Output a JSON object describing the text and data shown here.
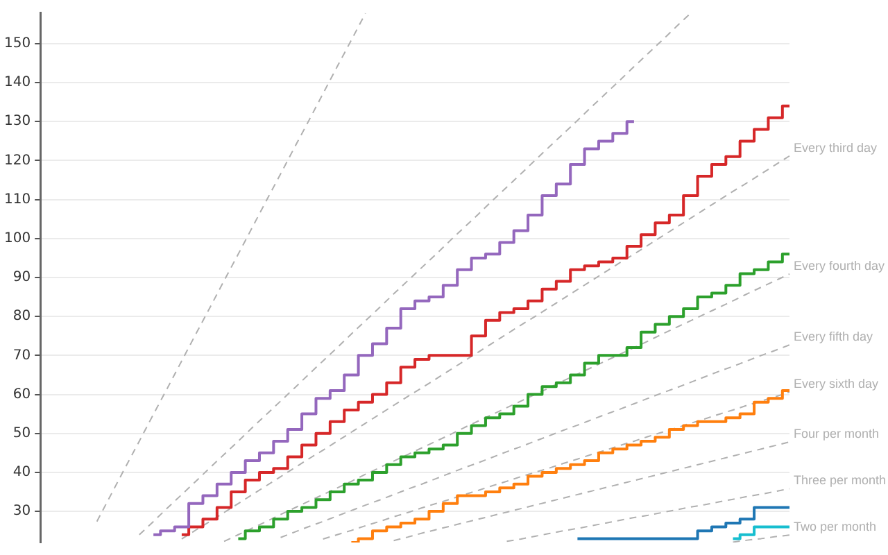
{
  "chart_data": {
    "type": "step",
    "categories": [
      null,
      null,
      null,
      null,
      null,
      null,
      null,
      null,
      null,
      null,
      null,
      null,
      null,
      null,
      null,
      null,
      null,
      null,
      null,
      null,
      null,
      null,
      null,
      null,
      null,
      null,
      null,
      null,
      null,
      null,
      null,
      null,
      null,
      null,
      null,
      null,
      null,
      null,
      null,
      null,
      null,
      null,
      null,
      null,
      null,
      null,
      null,
      null,
      null,
      null,
      null,
      null,
      null,
      null
    ],
    "ylim": [
      22,
      158
    ],
    "yticks": [
      30,
      40,
      50,
      60,
      70,
      80,
      90,
      100,
      110,
      120,
      130,
      140,
      150
    ],
    "grid": "y",
    "tick_labels": "y",
    "marker": "none",
    "series": [
      {
        "color": "#9467bd",
        "values": [
          null,
          null,
          null,
          null,
          null,
          null,
          null,
          null,
          24,
          25,
          26,
          32,
          34,
          37,
          40,
          43,
          45,
          48,
          51,
          55,
          59,
          61,
          65,
          70,
          73,
          77,
          82,
          84,
          85,
          88,
          92,
          95,
          96,
          99,
          102,
          106,
          111,
          114,
          119,
          123,
          125,
          127,
          130,
          null,
          null,
          null,
          null,
          null,
          null,
          null,
          null,
          null,
          null,
          null
        ]
      },
      {
        "color": "#d62728",
        "values": [
          null,
          null,
          null,
          null,
          null,
          null,
          null,
          null,
          null,
          null,
          24,
          26,
          28,
          31,
          35,
          38,
          40,
          41,
          44,
          47,
          50,
          53,
          56,
          58,
          60,
          63,
          67,
          69,
          70,
          70,
          70,
          75,
          79,
          81,
          82,
          84,
          87,
          89,
          92,
          93,
          94,
          95,
          98,
          101,
          104,
          106,
          111,
          116,
          119,
          121,
          125,
          128,
          131,
          134
        ]
      },
      {
        "color": "#2ca02c",
        "values": [
          null,
          null,
          null,
          null,
          null,
          null,
          null,
          null,
          null,
          null,
          null,
          null,
          null,
          null,
          23,
          25,
          26,
          28,
          30,
          31,
          33,
          35,
          37,
          38,
          40,
          42,
          44,
          45,
          46,
          47,
          50,
          52,
          54,
          55,
          57,
          60,
          62,
          63,
          65,
          68,
          70,
          70,
          72,
          76,
          78,
          80,
          82,
          85,
          86,
          88,
          91,
          92,
          94,
          96
        ]
      },
      {
        "color": "#ff7f0e",
        "values": [
          null,
          null,
          null,
          null,
          null,
          null,
          null,
          null,
          null,
          null,
          null,
          null,
          null,
          null,
          null,
          null,
          null,
          null,
          null,
          null,
          null,
          null,
          22,
          23,
          25,
          26,
          27,
          28,
          30,
          32,
          34,
          34,
          35,
          36,
          37,
          39,
          40,
          41,
          42,
          43,
          45,
          46,
          47,
          48,
          49,
          51,
          52,
          53,
          53,
          54,
          55,
          58,
          59,
          61
        ]
      },
      {
        "color": "#1f77b4",
        "values": [
          null,
          null,
          null,
          null,
          null,
          null,
          null,
          null,
          null,
          null,
          null,
          null,
          null,
          null,
          null,
          null,
          null,
          null,
          null,
          null,
          null,
          null,
          null,
          null,
          null,
          null,
          null,
          null,
          null,
          null,
          null,
          null,
          null,
          null,
          null,
          null,
          null,
          null,
          23,
          23,
          23,
          23,
          23,
          23,
          23,
          23,
          23,
          25,
          26,
          27,
          28,
          31,
          31,
          31
        ]
      },
      {
        "color": "#17becf",
        "values": [
          null,
          null,
          null,
          null,
          null,
          null,
          null,
          null,
          null,
          null,
          null,
          null,
          null,
          null,
          null,
          null,
          null,
          null,
          null,
          null,
          null,
          null,
          null,
          null,
          null,
          null,
          null,
          null,
          null,
          null,
          null,
          null,
          null,
          null,
          null,
          null,
          null,
          null,
          null,
          null,
          null,
          null,
          null,
          null,
          null,
          null,
          null,
          null,
          null,
          23,
          24,
          26,
          26,
          26
        ]
      },
      {
        "type": "line",
        "line_style": "dashed",
        "color": "#b0b0b0",
        "values": [
          null,
          null,
          null,
          null,
          27.4,
          34.3,
          41.2,
          48.0,
          54.9,
          61.7,
          68.6,
          75.5,
          82.3,
          89.2,
          96.0,
          102.9,
          109.8,
          116.6,
          123.5,
          130.3,
          137.2,
          144.1,
          150.9,
          157.8,
          null,
          null,
          null,
          null,
          null,
          null,
          null,
          null,
          null,
          null,
          null,
          null,
          null,
          null,
          null,
          null,
          null,
          null,
          null,
          null,
          null,
          null,
          null,
          null,
          null,
          null,
          null,
          null,
          null,
          null
        ]
      },
      {
        "type": "line",
        "line_style": "dashed",
        "color": "#b0b0b0",
        "values": [
          null,
          null,
          null,
          null,
          null,
          null,
          null,
          24.0,
          27.4,
          30.9,
          34.3,
          37.7,
          41.2,
          44.6,
          48.0,
          51.5,
          54.9,
          58.3,
          61.7,
          65.2,
          68.6,
          72.0,
          75.5,
          78.9,
          82.3,
          85.8,
          89.2,
          92.6,
          96.0,
          99.5,
          102.9,
          106.3,
          109.8,
          113.2,
          116.6,
          120.1,
          123.5,
          126.9,
          130.3,
          133.8,
          137.2,
          140.6,
          144.1,
          147.5,
          150.9,
          154.4,
          157.8,
          null,
          null,
          null,
          null,
          null,
          null,
          null
        ]
      },
      {
        "type": "line",
        "line_style": "dashed",
        "color": "#b0b0b0",
        "name": "Every third day",
        "values": [
          null,
          null,
          null,
          null,
          null,
          null,
          null,
          null,
          null,
          null,
          22.9,
          25.2,
          27.4,
          29.7,
          32.0,
          34.3,
          36.6,
          38.9,
          41.2,
          43.5,
          45.7,
          48.0,
          50.3,
          52.6,
          54.9,
          57.2,
          59.5,
          61.7,
          64.0,
          66.3,
          68.6,
          70.9,
          73.2,
          75.5,
          77.8,
          80.0,
          82.3,
          84.6,
          86.9,
          89.2,
          91.5,
          93.8,
          96.0,
          98.3,
          100.6,
          102.9,
          105.2,
          107.5,
          109.8,
          112.1,
          114.3,
          116.6,
          118.9,
          121.2
        ]
      },
      {
        "type": "line",
        "line_style": "dashed",
        "color": "#b0b0b0",
        "name": "Every fourth day",
        "values": [
          null,
          null,
          null,
          null,
          null,
          null,
          null,
          null,
          null,
          null,
          null,
          null,
          null,
          22.3,
          24.0,
          25.7,
          27.4,
          29.2,
          30.9,
          32.6,
          34.3,
          36.0,
          37.7,
          39.5,
          41.2,
          42.9,
          44.6,
          46.3,
          48.0,
          49.7,
          51.5,
          53.2,
          54.9,
          56.6,
          58.3,
          60.0,
          61.7,
          63.5,
          65.2,
          66.9,
          68.6,
          70.3,
          72.0,
          73.7,
          75.5,
          77.2,
          78.9,
          80.6,
          82.3,
          84.0,
          85.8,
          87.5,
          89.2,
          90.9
        ]
      },
      {
        "type": "line",
        "line_style": "dashed",
        "color": "#b0b0b0",
        "name": "Every fifth day",
        "values": [
          null,
          null,
          null,
          null,
          null,
          null,
          null,
          null,
          null,
          null,
          null,
          null,
          null,
          null,
          null,
          null,
          null,
          23.3,
          24.7,
          26.1,
          27.4,
          28.8,
          30.2,
          31.6,
          32.9,
          34.3,
          35.7,
          37.0,
          38.4,
          39.8,
          41.2,
          42.5,
          43.9,
          45.3,
          46.6,
          48.0,
          49.4,
          50.8,
          52.1,
          53.5,
          54.9,
          56.2,
          57.6,
          59.0,
          60.4,
          61.7,
          63.1,
          64.5,
          65.9,
          67.2,
          68.6,
          70.0,
          71.3,
          72.7
        ]
      },
      {
        "type": "line",
        "line_style": "dashed",
        "color": "#b0b0b0",
        "name": "Every sixth day",
        "values": [
          null,
          null,
          null,
          null,
          null,
          null,
          null,
          null,
          null,
          null,
          null,
          null,
          null,
          null,
          null,
          null,
          null,
          null,
          null,
          null,
          22.9,
          24.0,
          25.1,
          26.3,
          27.4,
          28.6,
          29.7,
          30.9,
          32.0,
          33.1,
          34.3,
          35.4,
          36.6,
          37.7,
          38.9,
          40.0,
          41.1,
          42.3,
          43.4,
          44.6,
          45.7,
          46.9,
          48.0,
          49.2,
          50.3,
          51.4,
          52.6,
          53.7,
          54.9,
          56.0,
          57.2,
          58.3,
          59.4,
          60.6
        ]
      },
      {
        "type": "line",
        "line_style": "dashed",
        "color": "#b0b0b0",
        "name": "Four per month",
        "values": [
          null,
          null,
          null,
          null,
          null,
          null,
          null,
          null,
          null,
          null,
          null,
          null,
          null,
          null,
          null,
          null,
          null,
          null,
          null,
          null,
          null,
          null,
          null,
          null,
          null,
          22.5,
          23.4,
          24.4,
          25.3,
          26.2,
          27.1,
          28.0,
          28.9,
          29.8,
          30.7,
          31.6,
          32.5,
          33.4,
          34.3,
          35.2,
          36.1,
          37.0,
          37.9,
          38.8,
          39.7,
          40.6,
          41.5,
          42.4,
          43.3,
          44.2,
          45.1,
          46.0,
          46.9,
          47.8
        ]
      },
      {
        "type": "line",
        "line_style": "dashed",
        "color": "#b0b0b0",
        "name": "Three per month",
        "values": [
          null,
          null,
          null,
          null,
          null,
          null,
          null,
          null,
          null,
          null,
          null,
          null,
          null,
          null,
          null,
          null,
          null,
          null,
          null,
          null,
          null,
          null,
          null,
          null,
          null,
          null,
          null,
          null,
          null,
          null,
          null,
          null,
          null,
          22.3,
          22.9,
          23.6,
          24.3,
          25.0,
          25.6,
          26.3,
          27.0,
          27.7,
          28.4,
          29.0,
          29.7,
          30.4,
          31.1,
          31.7,
          32.4,
          33.1,
          33.8,
          34.4,
          35.1,
          35.8
        ]
      },
      {
        "type": "line",
        "line_style": "dashed",
        "color": "#b0b0b0",
        "name": "Two per month",
        "values": [
          null,
          null,
          null,
          null,
          null,
          null,
          null,
          null,
          null,
          null,
          null,
          null,
          null,
          null,
          null,
          null,
          null,
          null,
          null,
          null,
          null,
          null,
          null,
          null,
          null,
          null,
          null,
          null,
          null,
          null,
          null,
          null,
          null,
          null,
          null,
          null,
          null,
          null,
          null,
          null,
          null,
          null,
          null,
          null,
          null,
          null,
          null,
          null,
          null,
          22.1,
          22.6,
          23.0,
          23.5,
          23.9
        ]
      }
    ]
  }
}
